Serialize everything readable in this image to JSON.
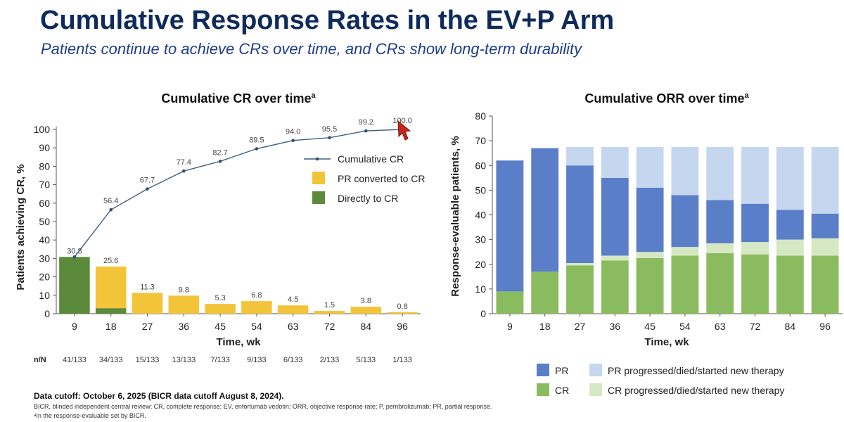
{
  "slide": {
    "title": "Cumulative Response Rates in the EV+P Arm",
    "subtitle": "Patients continue to achieve CRs over time, and CRs show long-term durability",
    "footer": {
      "cutoff": "Data cutoff: October 6, 2025 (BICR data cutoff August 8, 2024).",
      "abbreviations": "BICR, blinded independent central review; CR, complete response; EV, enfortumab vedotin; ORR, objective response rate; P, pembrolizumab; PR, partial response.",
      "footnote": "ᵃIn the response-evaluable set by BICR."
    },
    "cursor_icon": "red-arrow-cursor-icon"
  },
  "chart_data": [
    {
      "type": "bar+line",
      "title": "Cumulative CR over time",
      "title_superscript": "a",
      "xlabel": "Time, wk",
      "ylabel": "Patients achieving CR, %",
      "ylim": [
        0,
        100
      ],
      "yticks": [
        0,
        10,
        20,
        30,
        40,
        50,
        60,
        70,
        80,
        90,
        100
      ],
      "categories": [
        "9",
        "18",
        "27",
        "36",
        "45",
        "54",
        "63",
        "72",
        "84",
        "96"
      ],
      "series": [
        {
          "name": "Directly to CR",
          "kind": "bar",
          "color": "#5b8a3a",
          "values": [
            30.8,
            3.0,
            0,
            0,
            0,
            0,
            0,
            0,
            0,
            0
          ]
        },
        {
          "name": "PR converted to CR",
          "kind": "bar",
          "color": "#f2c43a",
          "values": [
            0,
            22.6,
            11.3,
            9.8,
            5.3,
            6.8,
            4.5,
            1.5,
            3.8,
            0.8
          ]
        },
        {
          "name": "Cumulative CR",
          "kind": "line",
          "color": "#3f5f82",
          "values": [
            30.8,
            56.4,
            67.7,
            77.4,
            82.7,
            89.5,
            94.0,
            95.5,
            99.2,
            100.0
          ]
        }
      ],
      "bar_labels": [
        "30.8",
        "25.6",
        "11.3",
        "9.8",
        "5.3",
        "6.8",
        "4.5",
        "1.5",
        "3.8",
        "0.8"
      ],
      "line_labels": [
        "30.8",
        "56.4",
        "67.7",
        "77.4",
        "82.7",
        "89.5",
        "94.0",
        "95.5",
        "99.2",
        "100.0"
      ],
      "nn_label": "n/N",
      "nn": [
        "41/133",
        "34/133",
        "15/133",
        "13/133",
        "7/133",
        "9/133",
        "6/133",
        "2/133",
        "5/133",
        "1/133"
      ],
      "legend": [
        "Cumulative CR",
        "PR converted to CR",
        "Directly to CR"
      ],
      "legend_position": "right-middle"
    },
    {
      "type": "stacked-bar",
      "title": "Cumulative ORR over time",
      "title_superscript": "a",
      "xlabel": "Time, wk",
      "ylabel": "Response-evaluable patients, %",
      "ylim": [
        0,
        80
      ],
      "yticks": [
        0,
        10,
        20,
        30,
        40,
        50,
        60,
        70,
        80
      ],
      "categories": [
        "9",
        "18",
        "27",
        "36",
        "45",
        "54",
        "63",
        "72",
        "84",
        "96"
      ],
      "series": [
        {
          "name": "CR",
          "color": "#8bbb5f",
          "values": [
            9,
            17,
            19.5,
            21.5,
            22.5,
            23.5,
            24.5,
            24,
            23.5,
            23.5
          ]
        },
        {
          "name": "CR progressed/died/started new therapy",
          "color": "#d5e8c3",
          "values": [
            0,
            0,
            1,
            2,
            2.5,
            3.5,
            4,
            5,
            6.5,
            7
          ]
        },
        {
          "name": "PR",
          "color": "#5a7ec8",
          "values": [
            53,
            50,
            39.5,
            31.5,
            26,
            21,
            17.5,
            15.5,
            12,
            10
          ]
        },
        {
          "name": "PR progressed/died/started new therapy",
          "color": "#c5d7ef",
          "values": [
            0,
            0,
            7.5,
            12.5,
            16.5,
            19.5,
            21.5,
            23,
            25.5,
            27
          ]
        }
      ],
      "legend": [
        "PR",
        "PR progressed/died/started new therapy",
        "CR",
        "CR progressed/died/started new therapy"
      ],
      "legend_position": "bottom"
    }
  ]
}
